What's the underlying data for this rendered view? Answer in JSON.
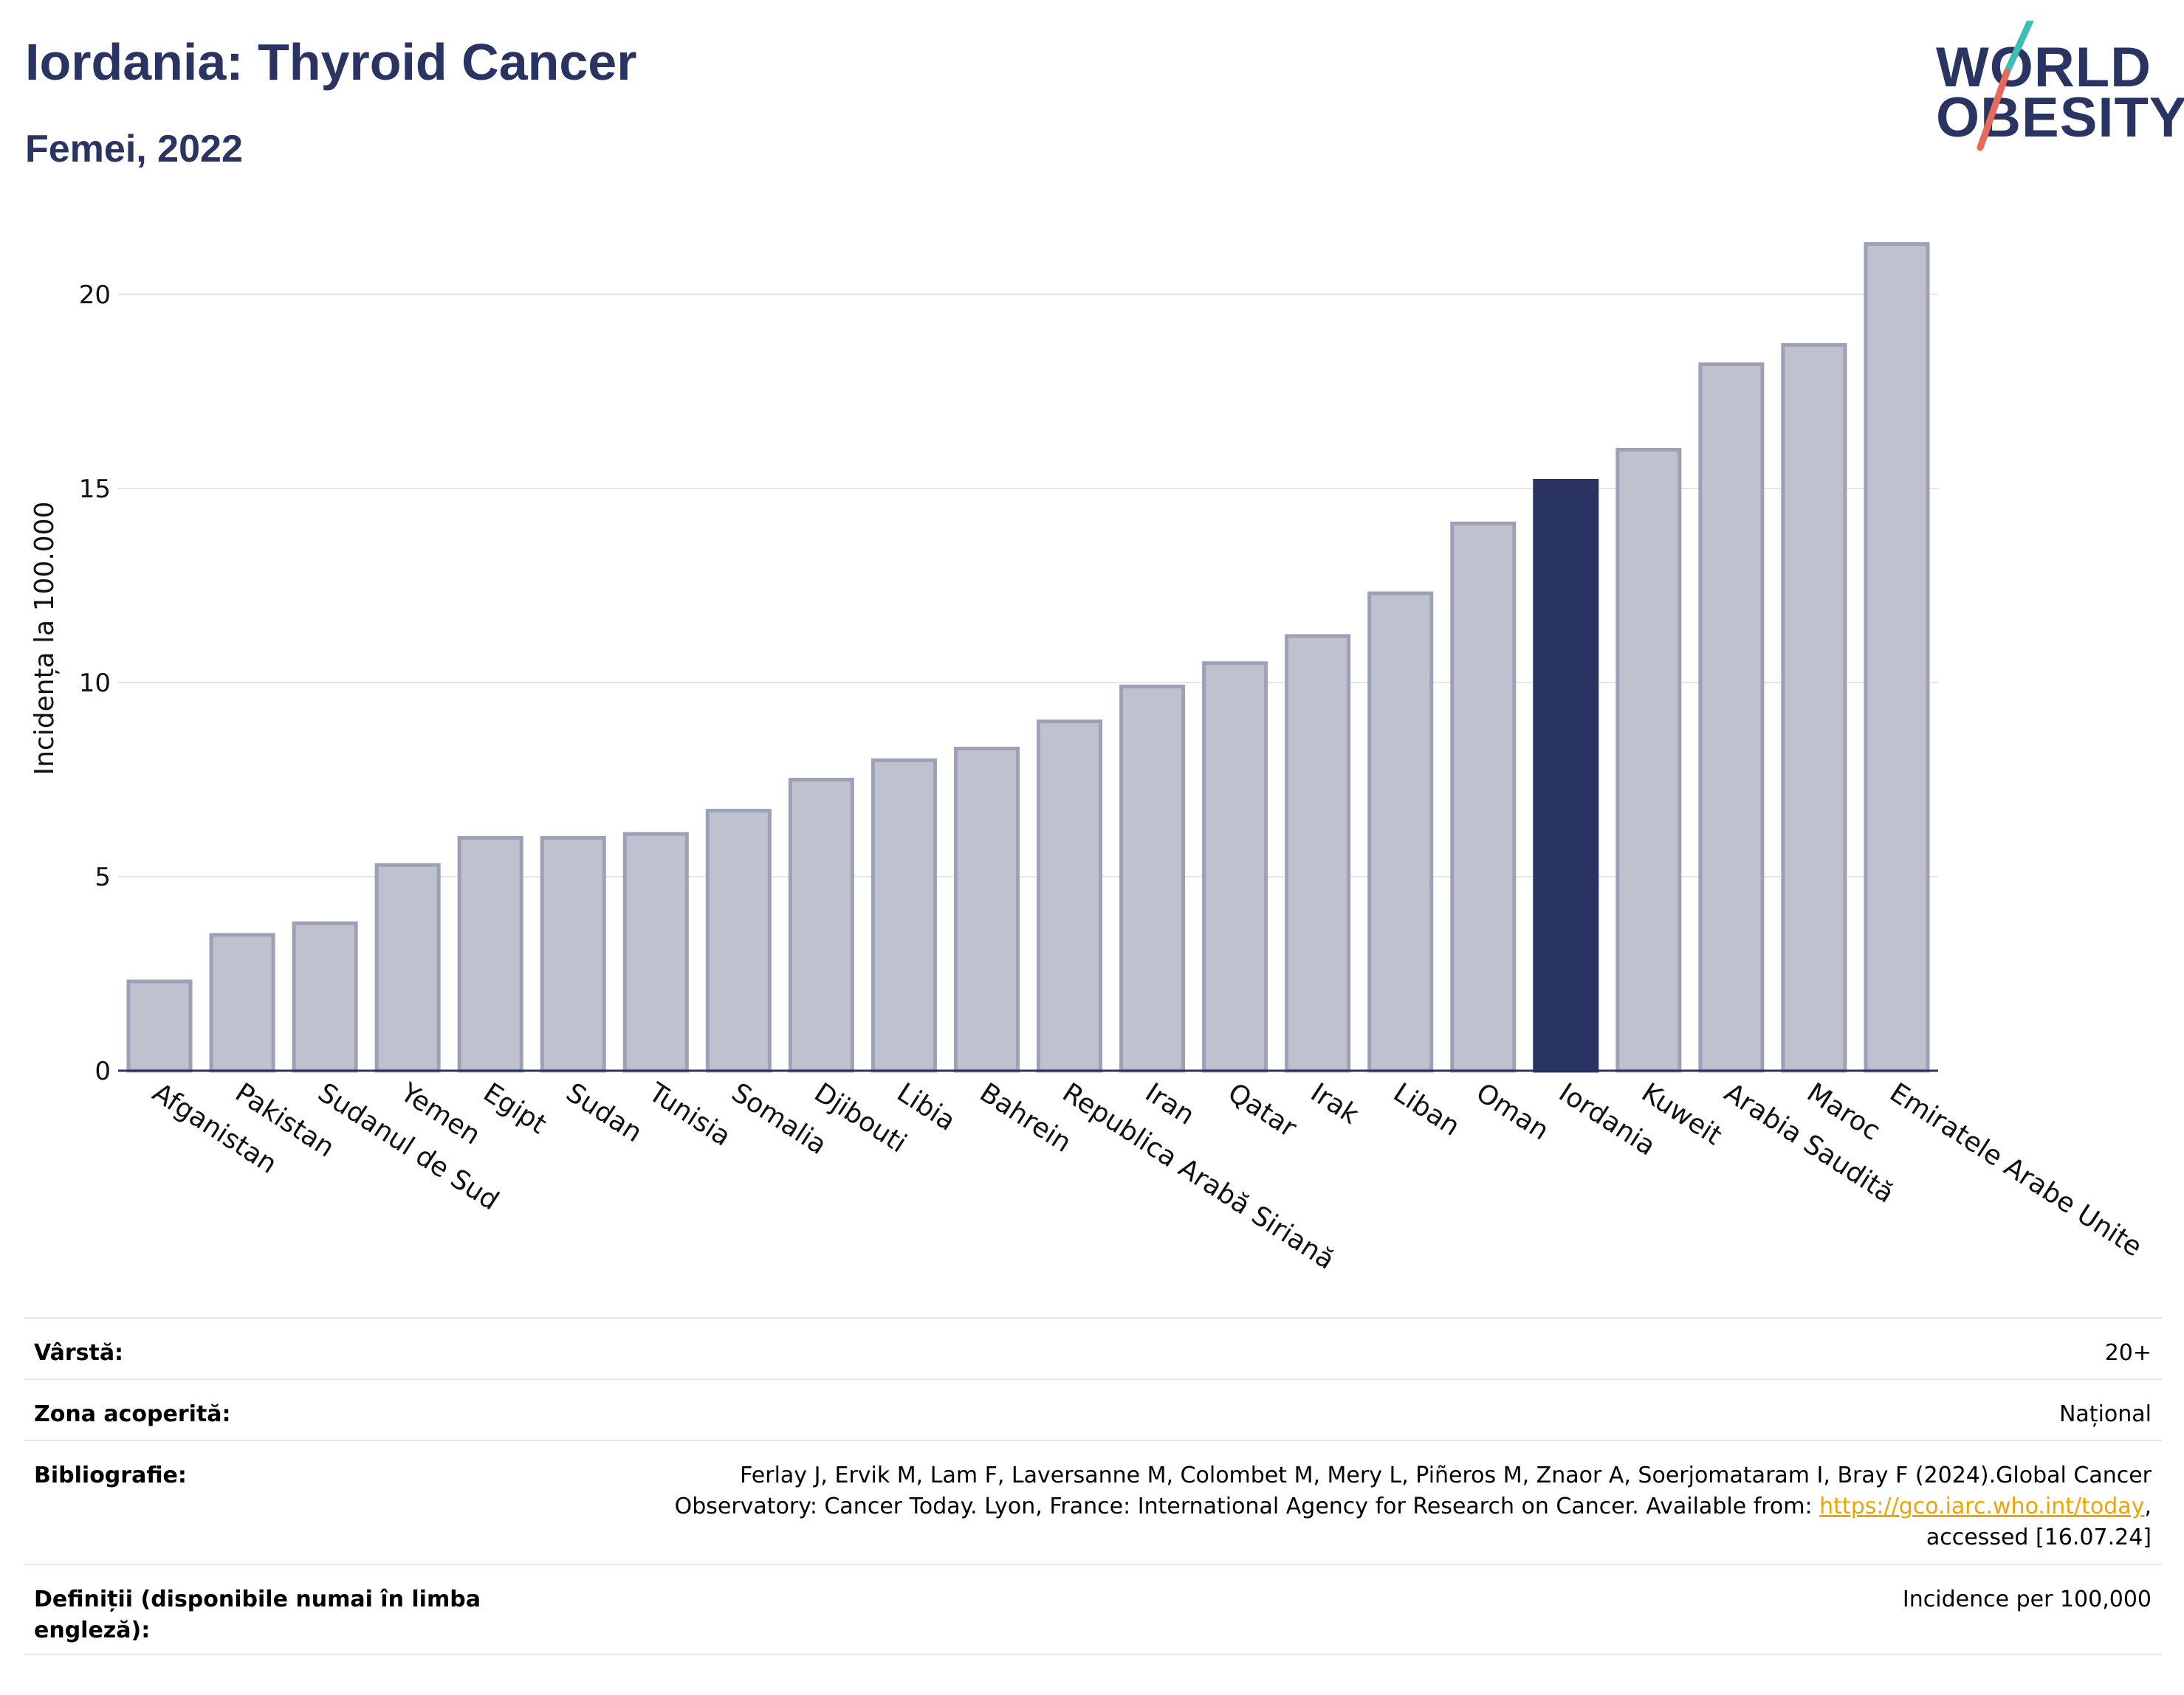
{
  "header": {
    "title": "Iordania: Thyroid Cancer",
    "subtitle": "Femei, 2022"
  },
  "logo": {
    "line1": "WORLD",
    "line2": "OBESITY",
    "slash_colors": [
      "#3dbdb4",
      "#e8685a"
    ]
  },
  "chart_data": {
    "type": "bar",
    "ylabel": "Incidența la 100.000",
    "xlabel": "",
    "ylim": [
      0,
      22
    ],
    "yticks": [
      0,
      5,
      10,
      15,
      20
    ],
    "grid": true,
    "highlight_category": "Iordania",
    "colors": {
      "bar": "#bfc2ce",
      "bar_edge": "#9da1b6",
      "highlight": "#2a3462",
      "grid": "#e4e4ec",
      "axis": "#2a3462"
    },
    "categories": [
      "Afganistan",
      "Pakistan",
      "Sudanul de Sud",
      "Yemen",
      "Egipt",
      "Sudan",
      "Tunisia",
      "Somalia",
      "Djibouti",
      "Libia",
      "Bahrein",
      "Republica Arabă Siriană",
      "Iran",
      "Qatar",
      "Irak",
      "Liban",
      "Oman",
      "Iordania",
      "Kuweit",
      "Arabia Saudită",
      "Maroc",
      "Emiratele Arabe Unite"
    ],
    "values": [
      2.3,
      3.5,
      3.8,
      5.3,
      6.0,
      6.0,
      6.1,
      6.7,
      7.5,
      8.0,
      8.3,
      9.0,
      9.9,
      10.5,
      11.2,
      12.3,
      14.1,
      15.2,
      16.0,
      18.2,
      18.7,
      21.3
    ]
  },
  "meta": {
    "age_label": "Vârstă:",
    "age_value": "20+",
    "coverage_label": "Zona acoperită:",
    "coverage_value": "Național",
    "bibliography_label": "Bibliografie:",
    "bibliography_line1": "Ferlay J, Ervik M, Lam F, Laversanne M, Colombet M, Mery L, Piñeros M, Znaor A, Soerjomataram I, Bray F (2024).Global Cancer",
    "bibliography_line2": "Observatory: Cancer Today. Lyon, France: International Agency for Research on Cancer. Available from: ",
    "bibliography_link": "https://gco.iarc.who.int/today",
    "bibliography_line2_end": ",",
    "bibliography_line3": "accessed [16.07.24]",
    "definitions_label": "Definiții (disponibile numai în limba engleză):",
    "definitions_value": "Incidence per 100,000"
  }
}
